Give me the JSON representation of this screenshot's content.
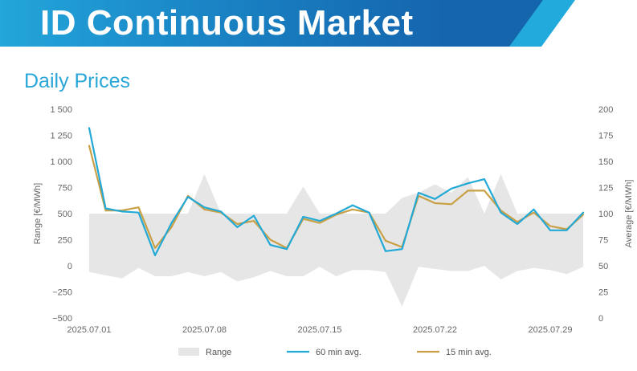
{
  "header": {
    "title": "ID Continuous Market"
  },
  "section": {
    "title": "Daily Prices"
  },
  "colors": {
    "banner_dark": "#1565ad",
    "banner_light": "#22aadc",
    "title": "#2aa7d8",
    "range": "#e6e6e6",
    "avg60": "#23a9d6",
    "avg15": "#c9a046"
  },
  "chart_data": {
    "type": "line",
    "x_ticks": [
      "2025.07.01",
      "2025.07.08",
      "2025.07.15",
      "2025.07.22",
      "2025.07.29"
    ],
    "left_axis": {
      "label": "Range [€/MWh]",
      "ticks": [
        "1 500",
        "1 250",
        "1 000",
        "750",
        "500",
        "250",
        "0",
        "−250",
        "−500"
      ],
      "range": [
        -500,
        1500
      ]
    },
    "right_axis": {
      "label": "Average [€/MWh]",
      "ticks": [
        "200",
        "175",
        "150",
        "125",
        "100",
        "75",
        "50",
        "25",
        "0"
      ],
      "range": [
        0,
        200
      ]
    },
    "grid": false,
    "legend_position": "bottom",
    "dates": [
      "07-01",
      "07-02",
      "07-03",
      "07-04",
      "07-05",
      "07-06",
      "07-07",
      "07-08",
      "07-09",
      "07-10",
      "07-11",
      "07-12",
      "07-13",
      "07-14",
      "07-15",
      "07-16",
      "07-17",
      "07-18",
      "07-19",
      "07-20",
      "07-21",
      "07-22",
      "07-23",
      "07-24",
      "07-25",
      "07-26",
      "07-27",
      "07-28",
      "07-29",
      "07-30",
      "07-31"
    ],
    "series": [
      {
        "name": "Range",
        "type": "area",
        "axis": "left",
        "high": [
          500,
          500,
          500,
          500,
          500,
          500,
          500,
          880,
          500,
          500,
          500,
          500,
          500,
          760,
          500,
          500,
          500,
          500,
          500,
          650,
          700,
          780,
          700,
          850,
          500,
          880,
          500,
          500,
          500,
          500,
          500
        ],
        "low": [
          -60,
          -90,
          -120,
          -20,
          -100,
          -100,
          -60,
          -100,
          -60,
          -150,
          -110,
          -50,
          -100,
          -100,
          -10,
          -100,
          -40,
          -40,
          -60,
          -390,
          -10,
          -30,
          -50,
          -50,
          0,
          -130,
          -50,
          -20,
          -40,
          -80,
          -10
        ]
      },
      {
        "name": "60 min avg.",
        "type": "line",
        "axis": "right",
        "values": [
          182,
          105,
          102,
          101,
          60,
          91,
          116,
          106,
          102,
          87,
          98,
          70,
          66,
          97,
          93,
          100,
          108,
          101,
          64,
          66,
          120,
          114,
          124,
          129,
          133,
          101,
          90,
          104,
          84,
          84,
          101
        ]
      },
      {
        "name": "15 min avg.",
        "type": "line",
        "axis": "right",
        "values": [
          165,
          103,
          103,
          106,
          67,
          87,
          117,
          104,
          101,
          90,
          93,
          75,
          67,
          95,
          91,
          99,
          104,
          101,
          74,
          68,
          117,
          110,
          109,
          122,
          122,
          103,
          92,
          101,
          88,
          85,
          99
        ]
      }
    ]
  }
}
